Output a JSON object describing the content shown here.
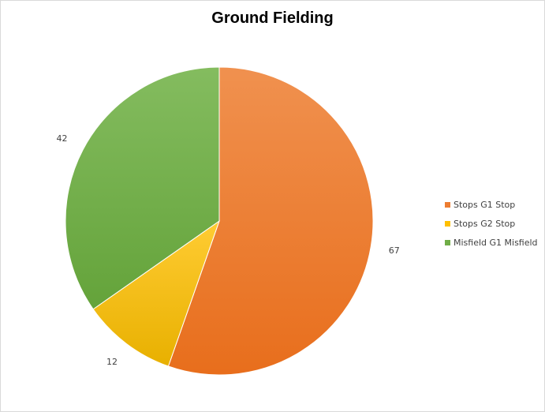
{
  "chart_data": {
    "type": "pie",
    "title": "Ground Fielding",
    "categories": [
      "Stops G1 Stop",
      "Stops G2 Stop",
      "Misfield G1 Misfield"
    ],
    "values": [
      67,
      12,
      42
    ],
    "data_labels": [
      "67",
      "12",
      "42"
    ],
    "colors": [
      "#ED7D31",
      "#FFC000",
      "#70AD47"
    ],
    "legend_position": "right"
  }
}
